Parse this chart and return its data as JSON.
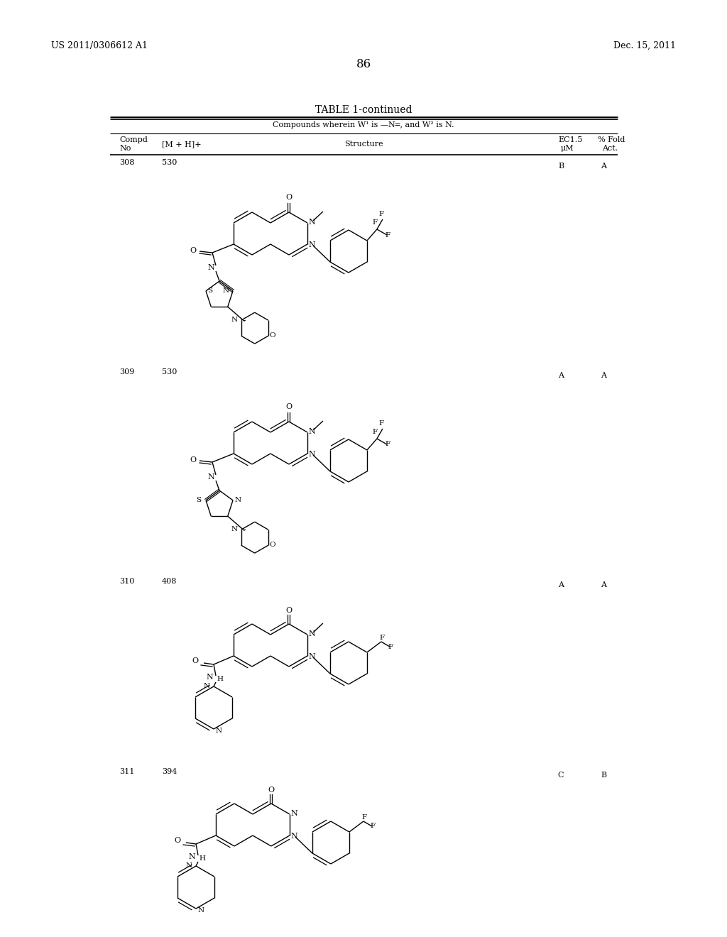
{
  "bg_color": "#ffffff",
  "page_width": 10.24,
  "page_height": 13.2,
  "header_left": "US 2011/0306612 A1",
  "header_right": "Dec. 15, 2011",
  "page_number": "86",
  "table_title": "TABLE 1-continued",
  "table_subtitle": "Compounds wherein W¹ is —N═, and W² is N.",
  "rows": [
    {
      "compd": "308",
      "mh": "530",
      "ec15": "B",
      "fold": "A"
    },
    {
      "compd": "309",
      "mh": "530",
      "ec15": "A",
      "fold": "A"
    },
    {
      "compd": "310",
      "mh": "408",
      "ec15": "A",
      "fold": "A"
    },
    {
      "compd": "311",
      "mh": "394",
      "ec15": "C",
      "fold": "B"
    }
  ]
}
